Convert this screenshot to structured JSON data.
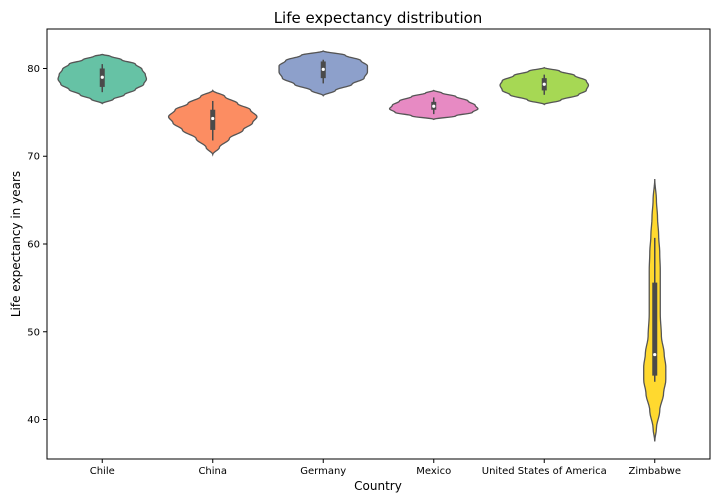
{
  "chart_data": {
    "type": "violin",
    "title": "Life expectancy distribution",
    "xlabel": "Country",
    "ylabel": "Life expectancy in years",
    "ylim": [
      35.5,
      84.5
    ],
    "yticks": [
      40,
      50,
      60,
      70,
      80
    ],
    "grid": false,
    "categories": [
      "Chile",
      "China",
      "Germany",
      "Mexico",
      "United States of America",
      "Zimbabwe"
    ],
    "colors": [
      "#66c2a5",
      "#fc8d62",
      "#8da0cb",
      "#e78ac3",
      "#a6d854",
      "#ffd92f"
    ],
    "series": [
      {
        "min": 77.3,
        "q1": 77.9,
        "median": 79.0,
        "q3": 80.0,
        "max": 80.5,
        "profile": [
          [
            76.0,
            0.0
          ],
          [
            76.5,
            0.2
          ],
          [
            77.0,
            0.4
          ],
          [
            77.6,
            0.6
          ],
          [
            78.2,
            0.75
          ],
          [
            78.8,
            0.8
          ],
          [
            79.3,
            0.78
          ],
          [
            79.9,
            0.72
          ],
          [
            80.5,
            0.6
          ],
          [
            81.0,
            0.35
          ],
          [
            81.4,
            0.15
          ],
          [
            81.6,
            0.0
          ]
        ]
      },
      {
        "min": 71.8,
        "q1": 73.0,
        "median": 74.3,
        "q3": 75.3,
        "max": 76.3,
        "profile": [
          [
            70.2,
            0.0
          ],
          [
            71.0,
            0.12
          ],
          [
            72.0,
            0.3
          ],
          [
            73.0,
            0.55
          ],
          [
            73.8,
            0.72
          ],
          [
            74.5,
            0.8
          ],
          [
            75.3,
            0.68
          ],
          [
            76.0,
            0.45
          ],
          [
            76.8,
            0.22
          ],
          [
            77.5,
            0.0
          ]
        ]
      },
      {
        "min": 78.3,
        "q1": 78.9,
        "median": 79.9,
        "q3": 80.8,
        "max": 81.0,
        "profile": [
          [
            76.9,
            0.0
          ],
          [
            77.5,
            0.22
          ],
          [
            78.2,
            0.52
          ],
          [
            78.9,
            0.74
          ],
          [
            79.6,
            0.8
          ],
          [
            80.3,
            0.8
          ],
          [
            80.9,
            0.68
          ],
          [
            81.5,
            0.4
          ],
          [
            82.0,
            0.0
          ]
        ]
      },
      {
        "min": 74.8,
        "q1": 75.3,
        "median": 75.7,
        "q3": 76.2,
        "max": 76.7,
        "profile": [
          [
            74.2,
            0.0
          ],
          [
            74.6,
            0.4
          ],
          [
            75.0,
            0.7
          ],
          [
            75.4,
            0.8
          ],
          [
            75.8,
            0.75
          ],
          [
            76.3,
            0.62
          ],
          [
            76.8,
            0.4
          ],
          [
            77.2,
            0.15
          ],
          [
            77.5,
            0.0
          ]
        ]
      },
      {
        "min": 77.0,
        "q1": 77.5,
        "median": 78.2,
        "q3": 78.9,
        "max": 79.3,
        "profile": [
          [
            75.9,
            0.0
          ],
          [
            76.4,
            0.3
          ],
          [
            77.0,
            0.62
          ],
          [
            77.5,
            0.76
          ],
          [
            78.1,
            0.8
          ],
          [
            78.6,
            0.76
          ],
          [
            79.2,
            0.55
          ],
          [
            79.7,
            0.28
          ],
          [
            80.1,
            0.0
          ]
        ]
      },
      {
        "min": 44.3,
        "q1": 45.0,
        "median": 47.4,
        "q3": 55.6,
        "max": 60.7,
        "profile": [
          [
            37.5,
            0.0
          ],
          [
            39.0,
            0.03
          ],
          [
            41.0,
            0.09
          ],
          [
            43.0,
            0.16
          ],
          [
            44.5,
            0.2
          ],
          [
            46.0,
            0.2
          ],
          [
            47.5,
            0.17
          ],
          [
            49.5,
            0.12
          ],
          [
            52.0,
            0.1
          ],
          [
            54.5,
            0.1
          ],
          [
            57.0,
            0.1
          ],
          [
            59.0,
            0.09
          ],
          [
            61.0,
            0.07
          ],
          [
            63.0,
            0.05
          ],
          [
            65.0,
            0.03
          ],
          [
            67.4,
            0.0
          ]
        ]
      }
    ]
  }
}
